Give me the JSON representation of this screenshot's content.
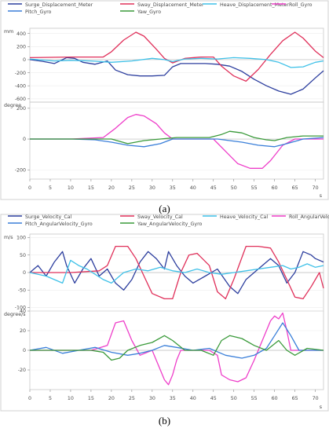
{
  "captions": [
    "(a)",
    "(b)"
  ],
  "chart_data": [
    {
      "type": "line",
      "legend": [
        {
          "name": "Surge_Displacement_Meter",
          "color": "#2c3e9e"
        },
        {
          "name": "Sway_Displacement_Meter",
          "color": "#e0305a"
        },
        {
          "name": "Heave_Displacement_Meter",
          "color": "#3fc1e8"
        },
        {
          "name": "Roll_Gyro",
          "color": "#ee3ec9"
        },
        {
          "name": "Pitch_Gyro",
          "color": "#3a7fd9"
        },
        {
          "name": "Yaw_Gyro",
          "color": "#3a9a3a"
        }
      ],
      "xlim": [
        0,
        72
      ],
      "xticks": [
        0,
        5,
        10,
        15,
        20,
        25,
        30,
        35,
        40,
        45,
        50,
        55,
        60,
        65,
        70
      ],
      "xlabel": "s",
      "panels": [
        {
          "unit": "mm",
          "ylim": [
            -650,
            480
          ],
          "yticks": [
            400,
            200,
            0,
            -200,
            -400,
            -600
          ],
          "series": [
            {
              "name": "Surge_Displacement_Meter",
              "color": "#2c3e9e",
              "x": [
                0,
                3,
                6,
                9,
                11,
                13,
                16,
                19,
                21,
                24,
                27,
                30,
                33,
                35,
                37,
                40,
                43,
                46,
                49,
                52,
                55,
                58,
                61,
                64,
                67,
                70,
                72
              ],
              "y": [
                0,
                -25,
                -60,
                30,
                20,
                -40,
                -70,
                -20,
                -160,
                -230,
                -250,
                -250,
                -240,
                -110,
                -60,
                -60,
                -60,
                -70,
                -100,
                -180,
                -300,
                -400,
                -480,
                -530,
                -450,
                -280,
                -170
              ]
            },
            {
              "name": "Sway_Displacement_Meter",
              "color": "#e0305a",
              "x": [
                0,
                10,
                18,
                20,
                23,
                26,
                28,
                31,
                33,
                35,
                38,
                42,
                45,
                47,
                50,
                53,
                56,
                59,
                62,
                65,
                67,
                70,
                72
              ],
              "y": [
                30,
                40,
                40,
                120,
                300,
                420,
                360,
                160,
                20,
                -50,
                20,
                40,
                40,
                -100,
                -250,
                -330,
                -150,
                80,
                290,
                420,
                330,
                130,
                30
              ]
            },
            {
              "name": "Heave_Displacement_Meter",
              "color": "#3fc1e8",
              "x": [
                0,
                6,
                10,
                15,
                20,
                25,
                30,
                33,
                35,
                38,
                42,
                46,
                50,
                54,
                58,
                61,
                64,
                67,
                70,
                72
              ],
              "y": [
                10,
                -20,
                -10,
                -20,
                -40,
                -20,
                20,
                0,
                -30,
                10,
                20,
                10,
                30,
                20,
                0,
                -40,
                -120,
                -110,
                -40,
                -20
              ]
            }
          ]
        },
        {
          "unit": "degree",
          "ylim": [
            -260,
            240
          ],
          "yticks": [
            200,
            0,
            -200
          ],
          "series": [
            {
              "name": "Roll_Gyro",
              "color": "#ee3ec9",
              "x": [
                0,
                10,
                18,
                21,
                24,
                26,
                28,
                31,
                33,
                35,
                40,
                45,
                48,
                51,
                54,
                57,
                59,
                62,
                65,
                72
              ],
              "y": [
                0,
                0,
                10,
                70,
                140,
                160,
                150,
                100,
                40,
                0,
                0,
                0,
                -80,
                -160,
                -190,
                -190,
                -140,
                -40,
                0,
                0
              ]
            },
            {
              "name": "Pitch_Gyro",
              "color": "#3a7fd9",
              "x": [
                0,
                10,
                16,
                20,
                24,
                28,
                32,
                35,
                40,
                46,
                52,
                56,
                60,
                63,
                67,
                72
              ],
              "y": [
                0,
                0,
                -5,
                -20,
                -40,
                -50,
                -30,
                0,
                0,
                0,
                -20,
                -40,
                -50,
                -30,
                0,
                10
              ]
            },
            {
              "name": "Yaw_Gyro",
              "color": "#3a9a3a",
              "x": [
                0,
                10,
                20,
                24,
                28,
                32,
                36,
                40,
                44,
                47,
                49,
                52,
                55,
                58,
                60,
                63,
                67,
                72
              ],
              "y": [
                0,
                0,
                0,
                -30,
                -10,
                0,
                10,
                10,
                10,
                30,
                50,
                40,
                10,
                -5,
                -10,
                10,
                20,
                20
              ]
            }
          ]
        }
      ]
    },
    {
      "type": "line",
      "legend": [
        {
          "name": "Surge_Velocity_Cal",
          "color": "#2c3e9e"
        },
        {
          "name": "Sway_Velocity_Cal",
          "color": "#e0305a"
        },
        {
          "name": "Heave_Velocity_Cal",
          "color": "#3fc1e8"
        },
        {
          "name": "Roll_AngularVelocity_Gyro",
          "color": "#ee3ec9"
        },
        {
          "name": "Pitch_AngularVelocity_Gyro",
          "color": "#3a7fd9"
        },
        {
          "name": "Yaw_AngularVelocity_Gyro",
          "color": "#3a9a3a"
        }
      ],
      "xlim": [
        0,
        72
      ],
      "xticks": [
        0,
        5,
        10,
        15,
        20,
        25,
        30,
        35,
        40,
        45,
        50,
        55,
        60,
        65,
        70
      ],
      "xlabel": "s",
      "panels": [
        {
          "unit": "m/s",
          "ylim": [
            -110,
            110
          ],
          "yticks": [
            100,
            50,
            0,
            -50,
            -100
          ],
          "series": [
            {
              "name": "Surge_Velocity_Cal",
              "color": "#2c3e9e",
              "x": [
                0,
                2,
                4,
                6,
                8,
                9,
                11,
                13,
                15,
                17,
                19,
                21,
                23,
                25,
                27,
                29,
                31,
                33,
                34,
                36,
                38,
                40,
                43,
                46,
                49,
                51,
                53,
                56,
                59,
                61,
                63,
                65,
                67,
                69,
                70,
                72
              ],
              "y": [
                0,
                20,
                -10,
                30,
                60,
                20,
                -30,
                10,
                40,
                -10,
                10,
                -30,
                -50,
                -20,
                30,
                60,
                40,
                10,
                60,
                20,
                -10,
                -30,
                -10,
                10,
                -40,
                -60,
                -20,
                10,
                40,
                20,
                -30,
                0,
                60,
                50,
                40,
                30
              ]
            },
            {
              "name": "Sway_Velocity_Cal",
              "color": "#e0305a",
              "x": [
                0,
                10,
                17,
                19,
                21,
                24,
                26,
                28,
                30,
                33,
                35,
                37,
                39,
                41,
                44,
                46,
                48,
                50,
                53,
                56,
                59,
                61,
                63,
                65,
                67,
                69,
                71,
                72
              ],
              "y": [
                0,
                0,
                5,
                20,
                75,
                75,
                40,
                -10,
                -60,
                -75,
                -75,
                0,
                50,
                55,
                20,
                -55,
                -75,
                -20,
                75,
                75,
                70,
                30,
                -20,
                -70,
                -75,
                -40,
                0,
                -45
              ]
            },
            {
              "name": "Heave_Velocity_Cal",
              "color": "#3fc1e8",
              "x": [
                0,
                4,
                8,
                10,
                12,
                14,
                16,
                18,
                20,
                23,
                26,
                29,
                32,
                35,
                38,
                41,
                44,
                47,
                50,
                53,
                56,
                59,
                62,
                64,
                66,
                68,
                70,
                72
              ],
              "y": [
                0,
                -10,
                -30,
                35,
                20,
                10,
                -5,
                -20,
                -30,
                0,
                10,
                5,
                15,
                5,
                0,
                10,
                0,
                -5,
                0,
                5,
                10,
                15,
                20,
                10,
                15,
                25,
                15,
                20
              ]
            }
          ]
        },
        {
          "unit": "degree/s",
          "ylim": [
            -40,
            40
          ],
          "yticks": [
            40,
            20,
            0,
            -20
          ],
          "series": [
            {
              "name": "Roll_AngularVelocity_Gyro",
              "color": "#ee3ec9",
              "x": [
                0,
                15,
                19,
                21,
                23,
                25,
                27,
                30,
                32,
                33,
                34,
                35,
                36,
                37,
                40,
                44,
                46,
                47,
                49,
                51,
                53,
                55,
                57,
                59,
                60,
                61,
                62,
                63,
                64,
                66,
                72
              ],
              "y": [
                0,
                0,
                5,
                28,
                30,
                10,
                -5,
                0,
                -20,
                -30,
                -35,
                -25,
                -10,
                0,
                0,
                0,
                -5,
                -25,
                -30,
                -32,
                -28,
                -10,
                10,
                30,
                35,
                32,
                38,
                20,
                0,
                0,
                0
              ]
            },
            {
              "name": "Pitch_AngularVelocity_Gyro",
              "color": "#3a7fd9",
              "x": [
                0,
                4,
                8,
                12,
                16,
                20,
                24,
                27,
                30,
                33,
                36,
                40,
                44,
                48,
                52,
                55,
                58,
                60,
                62,
                64,
                66,
                72
              ],
              "y": [
                0,
                3,
                -3,
                0,
                3,
                -2,
                -5,
                -3,
                0,
                5,
                3,
                0,
                2,
                -5,
                -8,
                -5,
                2,
                15,
                28,
                15,
                0,
                0
              ]
            },
            {
              "name": "Yaw_AngularVelocity_Gyro",
              "color": "#3a9a3a",
              "x": [
                0,
                15,
                18,
                20,
                22,
                24,
                27,
                30,
                33,
                35,
                38,
                42,
                45,
                47,
                49,
                52,
                55,
                58,
                61,
                63,
                65,
                68,
                72
              ],
              "y": [
                0,
                0,
                -2,
                -10,
                -8,
                0,
                5,
                8,
                15,
                10,
                0,
                0,
                -5,
                10,
                15,
                12,
                5,
                0,
                10,
                0,
                -5,
                2,
                0
              ]
            }
          ]
        }
      ]
    }
  ]
}
